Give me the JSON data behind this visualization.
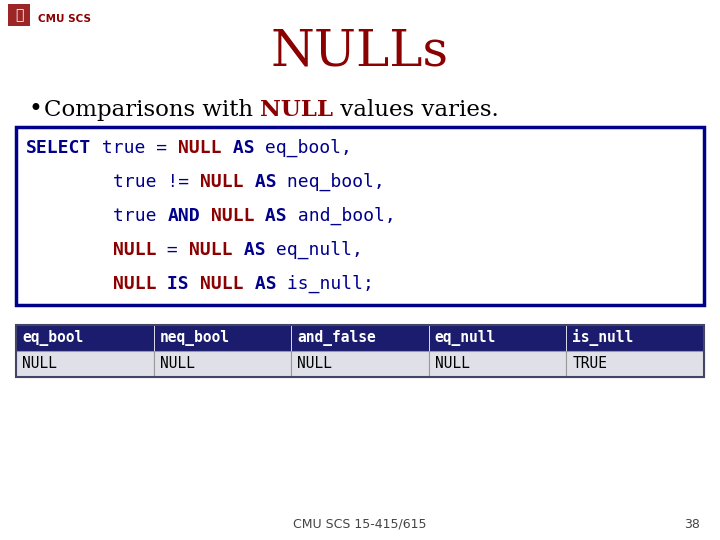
{
  "title": "NULLs",
  "title_color": "#8B0000",
  "bg_color": "#FFFFFF",
  "header_text": "CMU SCS",
  "table_headers": [
    "eq_bool",
    "neq_bool",
    "and_false",
    "eq_null",
    "is_null"
  ],
  "table_row": [
    "NULL",
    "NULL",
    "NULL",
    "NULL",
    "TRUE"
  ],
  "table_header_bg": "#1C1C6E",
  "table_header_fg": "#FFFFFF",
  "table_row_bg": "#E0E0E8",
  "table_row_fg": "#000000",
  "footer_text": "CMU SCS 15-415/615",
  "footer_page": "38",
  "code_box_border": "#00008B",
  "code_box_bg": "#FFFFFF",
  "dark_blue": "#00008B",
  "dark_red": "#8B0000",
  "black": "#000000",
  "white": "#FFFFFF"
}
